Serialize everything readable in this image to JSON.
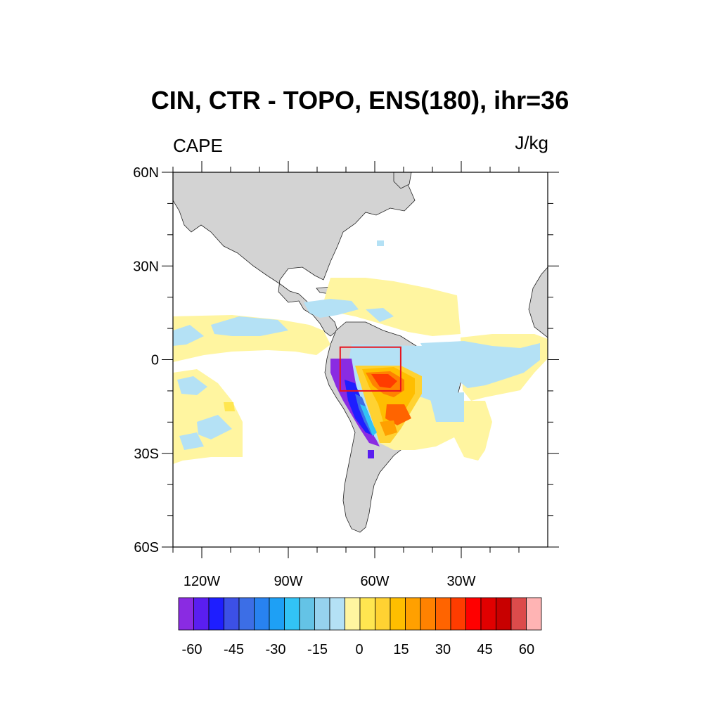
{
  "title": "CIN, CTR - TOPO, ENS(180), ihr=36",
  "left_subtitle": "CAPE",
  "right_subtitle": "J/kg",
  "axes": {
    "lat_ticks": [
      {
        "value": 60,
        "label": "60N"
      },
      {
        "value": 30,
        "label": "30N"
      },
      {
        "value": 0,
        "label": "0"
      },
      {
        "value": -30,
        "label": "30S"
      },
      {
        "value": -60,
        "label": "60S"
      }
    ],
    "lon_ticks": [
      {
        "value": -120,
        "label": "120W"
      },
      {
        "value": -90,
        "label": "90W"
      },
      {
        "value": -60,
        "label": "60W"
      },
      {
        "value": -30,
        "label": "30W"
      }
    ],
    "lon_range": [
      -130,
      0
    ],
    "lat_range": [
      -60,
      60
    ]
  },
  "box": {
    "lon": [
      -72,
      -51
    ],
    "lat": [
      -10,
      4
    ],
    "color": "#e8141e"
  },
  "colorbar": {
    "labels": [
      "-60",
      "-45",
      "-30",
      "-15",
      "0",
      "15",
      "30",
      "45",
      "60"
    ],
    "colors": [
      "#8a2be2",
      "#5a1ef0",
      "#1e1eff",
      "#3c50e6",
      "#3c6ee6",
      "#2882f0",
      "#1ea0f5",
      "#32c3f5",
      "#64c3e6",
      "#96d2ee",
      "#b4e1f5",
      "#fff5a0",
      "#ffe650",
      "#ffd232",
      "#ffbe00",
      "#ffa000",
      "#ff8200",
      "#ff6400",
      "#ff3c00",
      "#ff0000",
      "#e10000",
      "#c80000",
      "#dc4b4b",
      "#ffb4b4"
    ]
  },
  "legend_hint": "shading: difference field (J/kg); gray: land"
}
